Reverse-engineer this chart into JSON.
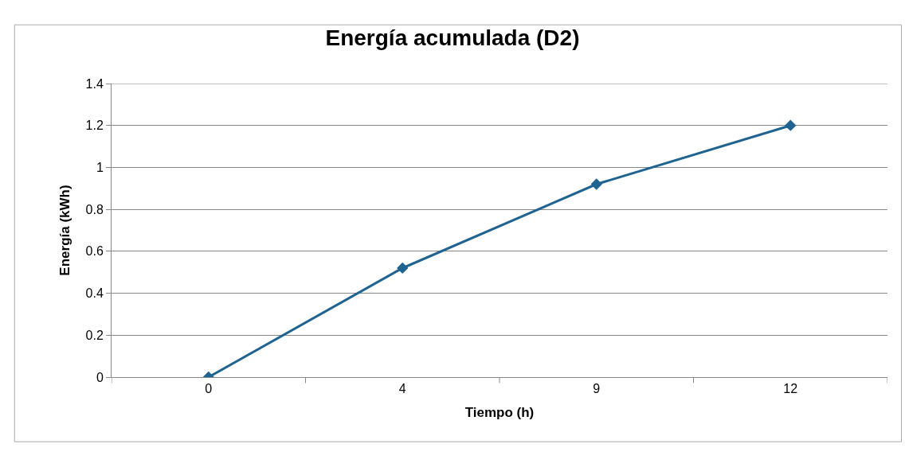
{
  "chart_data": {
    "type": "line",
    "title": "Energía acumulada (D2)",
    "xlabel": "Tiempo (h)",
    "ylabel": "Energía (kWh)",
    "categories": [
      "0",
      "4",
      "9",
      "12"
    ],
    "series": [
      {
        "color": "#1f6391",
        "values": [
          0,
          0.52,
          0.92,
          1.2
        ]
      }
    ],
    "ylim": [
      0,
      1.4
    ],
    "yticks": [
      0,
      0.2,
      0.4,
      0.6,
      0.8,
      1,
      1.2,
      1.4
    ],
    "grid": "y",
    "marker": "diamond",
    "line_style": "solid"
  }
}
